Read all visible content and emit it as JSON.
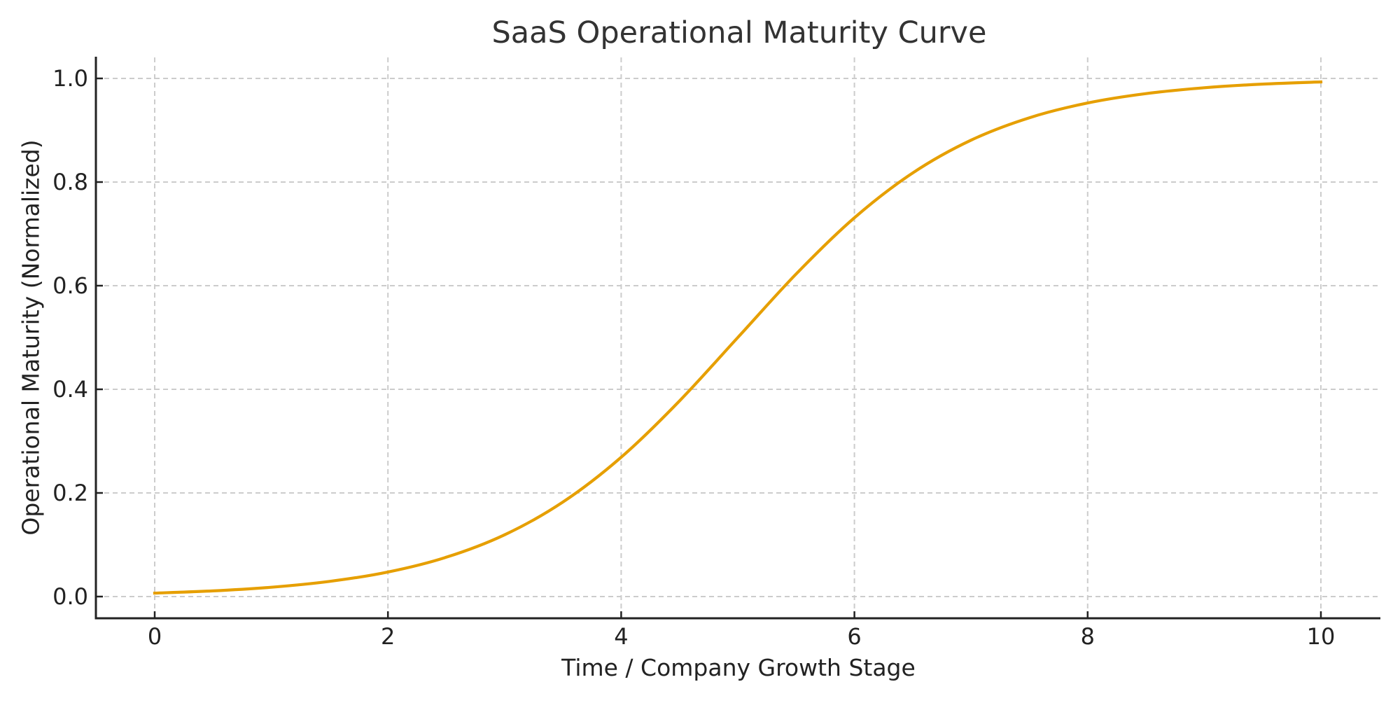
{
  "chart_data": {
    "type": "line",
    "title": "SaaS Operational Maturity Curve",
    "xlabel": "Time / Company Growth Stage",
    "ylabel": "Operational Maturity (Normalized)",
    "xlim": [
      -0.25,
      10.5
    ],
    "ylim": [
      -0.04,
      1.04
    ],
    "xticks": [
      0,
      2,
      4,
      6,
      8,
      10
    ],
    "xtick_labels": [
      "0",
      "2",
      "4",
      "6",
      "8",
      "10"
    ],
    "yticks": [
      0.0,
      0.2,
      0.4,
      0.6,
      0.8,
      1.0
    ],
    "ytick_labels": [
      "0.0",
      "0.2",
      "0.4",
      "0.6",
      "0.8",
      "1.0"
    ],
    "grid": true,
    "grid_style": "dashed",
    "legend": null,
    "series": [
      {
        "name": "Operational Maturity",
        "color": "#E69F00",
        "x": [
          0,
          0.5,
          1,
          1.5,
          2,
          2.5,
          3,
          3.5,
          4,
          4.5,
          5,
          5.5,
          6,
          6.5,
          7,
          7.5,
          8,
          8.5,
          9,
          9.5,
          10
        ],
        "y": [
          0.0067,
          0.011,
          0.018,
          0.0293,
          0.0474,
          0.0759,
          0.1192,
          0.1824,
          0.2689,
          0.3775,
          0.5,
          0.6225,
          0.7311,
          0.8176,
          0.8808,
          0.9241,
          0.9526,
          0.9707,
          0.982,
          0.989,
          0.9933
        ]
      }
    ]
  },
  "colors": {
    "line": "#E69F00",
    "grid": "#cccccc",
    "axis": "#222222",
    "title": "#333333"
  }
}
